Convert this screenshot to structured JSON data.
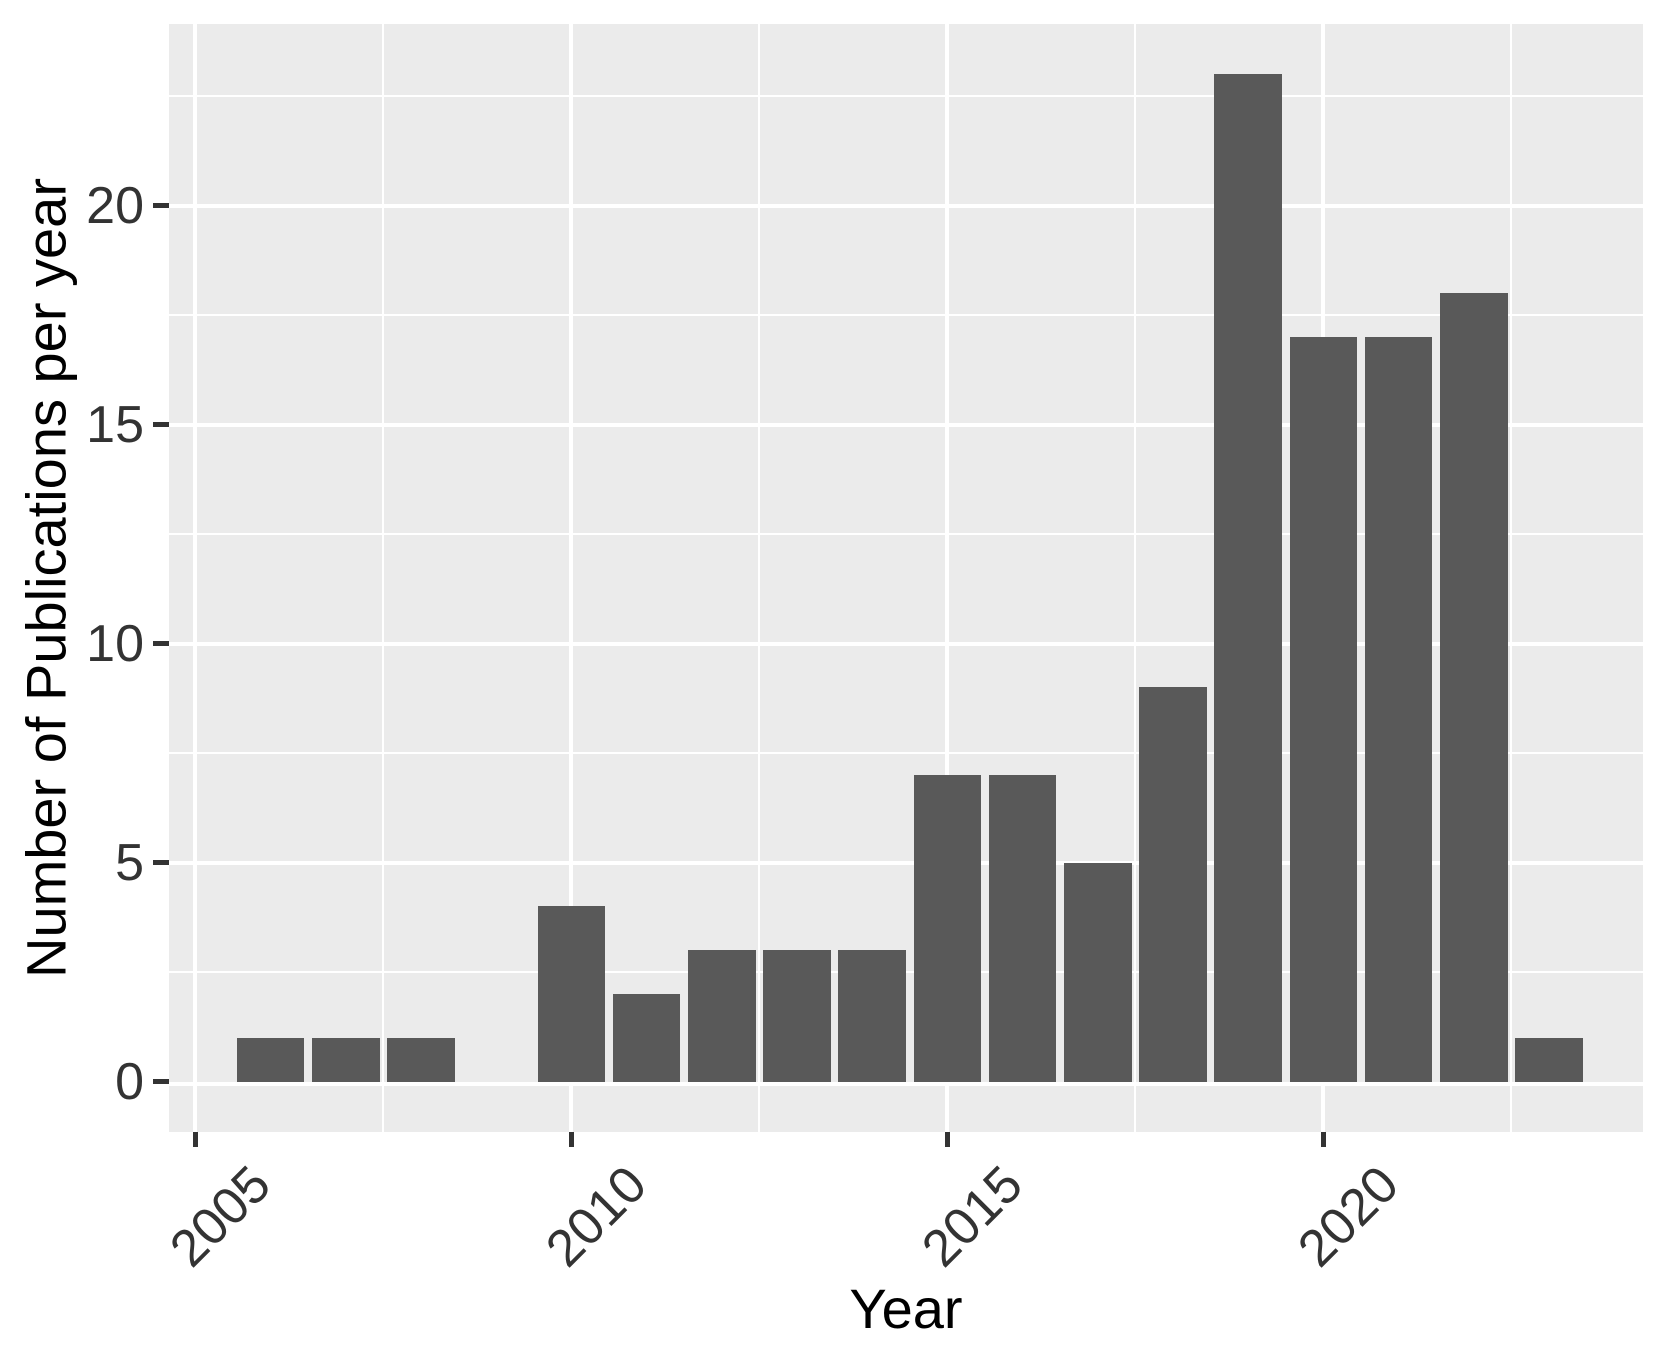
{
  "chart_data": {
    "type": "bar",
    "title": "",
    "xlabel": "Year",
    "ylabel": "Number of Publications per year",
    "categories": [
      2006,
      2007,
      2008,
      2010,
      2011,
      2012,
      2013,
      2014,
      2015,
      2016,
      2017,
      2018,
      2019,
      2020,
      2021,
      2022,
      2023
    ],
    "values": [
      1,
      1,
      1,
      4,
      2,
      3,
      3,
      3,
      7,
      7,
      5,
      9,
      23,
      17,
      17,
      18,
      1
    ],
    "missing_years": [
      2005,
      2009
    ],
    "bar_width_years": 0.9,
    "xlim": [
      2004.65,
      2024.25
    ],
    "ylim": [
      -1.15,
      24.15
    ],
    "x_ticks": {
      "values": [
        2005,
        2010,
        2015,
        2020
      ],
      "labels": [
        "2005",
        "2010",
        "2015",
        "2020"
      ]
    },
    "y_ticks": {
      "values": [
        0,
        5,
        10,
        15,
        20
      ],
      "labels": [
        "0",
        "5",
        "10",
        "15",
        "20"
      ]
    },
    "x_minor_gridlines": [
      2007.5,
      2012.5,
      2017.5,
      2022.5
    ],
    "y_minor_gridlines": [
      2.5,
      7.5,
      12.5,
      17.5,
      22.5
    ],
    "grid": "on",
    "legend": "none",
    "x_tick_label_angle_deg": 45,
    "colors": {
      "bar": "#595959",
      "panel_bg": "#EBEBEB",
      "gridline": "#FFFFFF",
      "tick_mark": "#333333",
      "tick_label": "#333333",
      "axis_title": "#000000",
      "figure_bg": "#FFFFFF"
    }
  }
}
